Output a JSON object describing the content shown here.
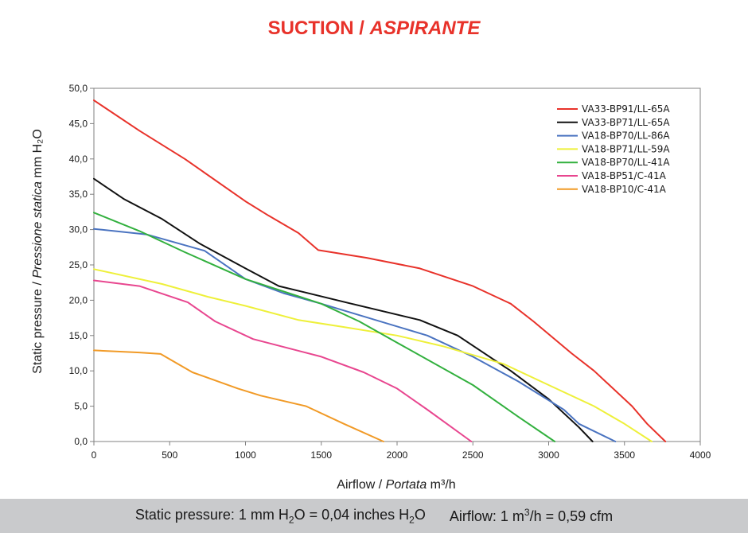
{
  "header": {
    "title_main": "SUCTION /",
    "title_italic": "ASPIRANTE"
  },
  "footer": {
    "pressure_prefix": "Static pressure: 1 mm H",
    "pressure_sub": "2",
    "pressure_mid": "O = 0,04 inches H",
    "pressure_sub2": "2",
    "pressure_end": "O",
    "airflow_prefix": "Airflow: 1 m",
    "airflow_sup": "3",
    "airflow_end": "/h = 0,59 cfm"
  },
  "chart_data": {
    "type": "line",
    "title": "SUCTION / ASPIRANTE",
    "xlabel": {
      "plain": "Airflow / ",
      "italic": "Portata",
      "unit": " m³/h"
    },
    "ylabel": {
      "plain": "Static pressure / ",
      "italic": "Pressione statica",
      "unit": " mm H₂O"
    },
    "xlim": [
      0,
      4000
    ],
    "ylim": [
      0,
      50
    ],
    "x_ticks": [
      "0",
      "500",
      "1000",
      "1500",
      "2000",
      "2500",
      "3000",
      "3500",
      "4000"
    ],
    "y_ticks": [
      "0,0",
      "5,0",
      "10,0",
      "15,0",
      "20,0",
      "25,0",
      "30,0",
      "35,0",
      "40,0",
      "45,0",
      "50,0"
    ],
    "grid": false,
    "legend_position": "top-right",
    "series": [
      {
        "name": "VA33-BP91/LL-65A",
        "color": "#e8322a",
        "x": [
          0,
          300,
          600,
          700,
          1000,
          1150,
          1350,
          1480,
          1800,
          2150,
          2500,
          2750,
          2900,
          3150,
          3300,
          3550,
          3650,
          3770
        ],
        "y": [
          48.3,
          44.0,
          40.0,
          38.5,
          34.0,
          32.0,
          29.5,
          27.1,
          26.0,
          24.5,
          22.0,
          19.5,
          17.0,
          12.5,
          10.0,
          5.0,
          2.5,
          0
        ]
      },
      {
        "name": "VA33-BP71/LL-65A",
        "color": "#111111",
        "x": [
          0,
          200,
          450,
          700,
          1000,
          1220,
          1700,
          2150,
          2400,
          2750,
          3000,
          3200,
          3290
        ],
        "y": [
          37.2,
          34.3,
          31.5,
          28.0,
          24.5,
          22.0,
          19.5,
          17.2,
          15.0,
          10.0,
          6.0,
          2.0,
          0
        ]
      },
      {
        "name": "VA18-BP70/LL-86A",
        "color": "#4a73c0",
        "x": [
          0,
          350,
          730,
          1000,
          1250,
          1500,
          2200,
          2500,
          2800,
          3100,
          3200,
          3440
        ],
        "y": [
          30.1,
          29.3,
          27.0,
          23.0,
          21.0,
          19.5,
          15.0,
          12.0,
          8.5,
          4.5,
          2.5,
          0
        ]
      },
      {
        "name": "VA18-BP71/LL-59A",
        "color": "#eef03a",
        "x": [
          0,
          450,
          750,
          1000,
          1350,
          1650,
          2000,
          2300,
          2700,
          3000,
          3300,
          3500,
          3680
        ],
        "y": [
          24.4,
          22.3,
          20.5,
          19.2,
          17.2,
          16.2,
          15.0,
          13.5,
          11.0,
          8.0,
          5.0,
          2.5,
          0
        ]
      },
      {
        "name": "VA18-BP70/LL-41A",
        "color": "#32b03e",
        "x": [
          0,
          300,
          600,
          1000,
          1500,
          1750,
          2000,
          2500,
          2800,
          3040
        ],
        "y": [
          32.4,
          29.8,
          26.8,
          23.0,
          19.5,
          17.0,
          14.0,
          8.0,
          3.5,
          0
        ]
      },
      {
        "name": "VA18-BP51/C-41A",
        "color": "#e8468f",
        "x": [
          0,
          300,
          620,
          800,
          1050,
          1500,
          1780,
          2000,
          2200,
          2490
        ],
        "y": [
          22.8,
          22.0,
          19.7,
          17.0,
          14.5,
          12.0,
          9.8,
          7.5,
          4.5,
          0
        ]
      },
      {
        "name": "VA18-BP10/C-41A",
        "color": "#f19a26",
        "x": [
          0,
          300,
          440,
          650,
          950,
          1100,
          1400,
          1650,
          1910
        ],
        "y": [
          12.9,
          12.6,
          12.4,
          9.8,
          7.5,
          6.5,
          5.0,
          2.5,
          0
        ]
      }
    ]
  }
}
